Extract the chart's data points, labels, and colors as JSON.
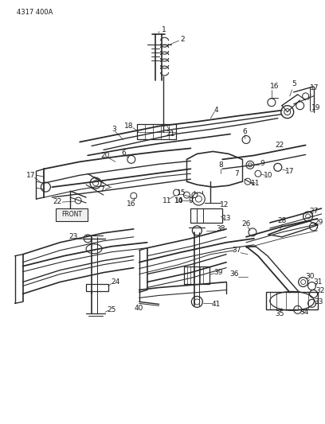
{
  "bg_color": "#ffffff",
  "line_color": "#2a2a2a",
  "text_color": "#1a1a1a",
  "header_text": "4317 400A",
  "fig_width": 4.08,
  "fig_height": 5.33,
  "dpi": 100
}
